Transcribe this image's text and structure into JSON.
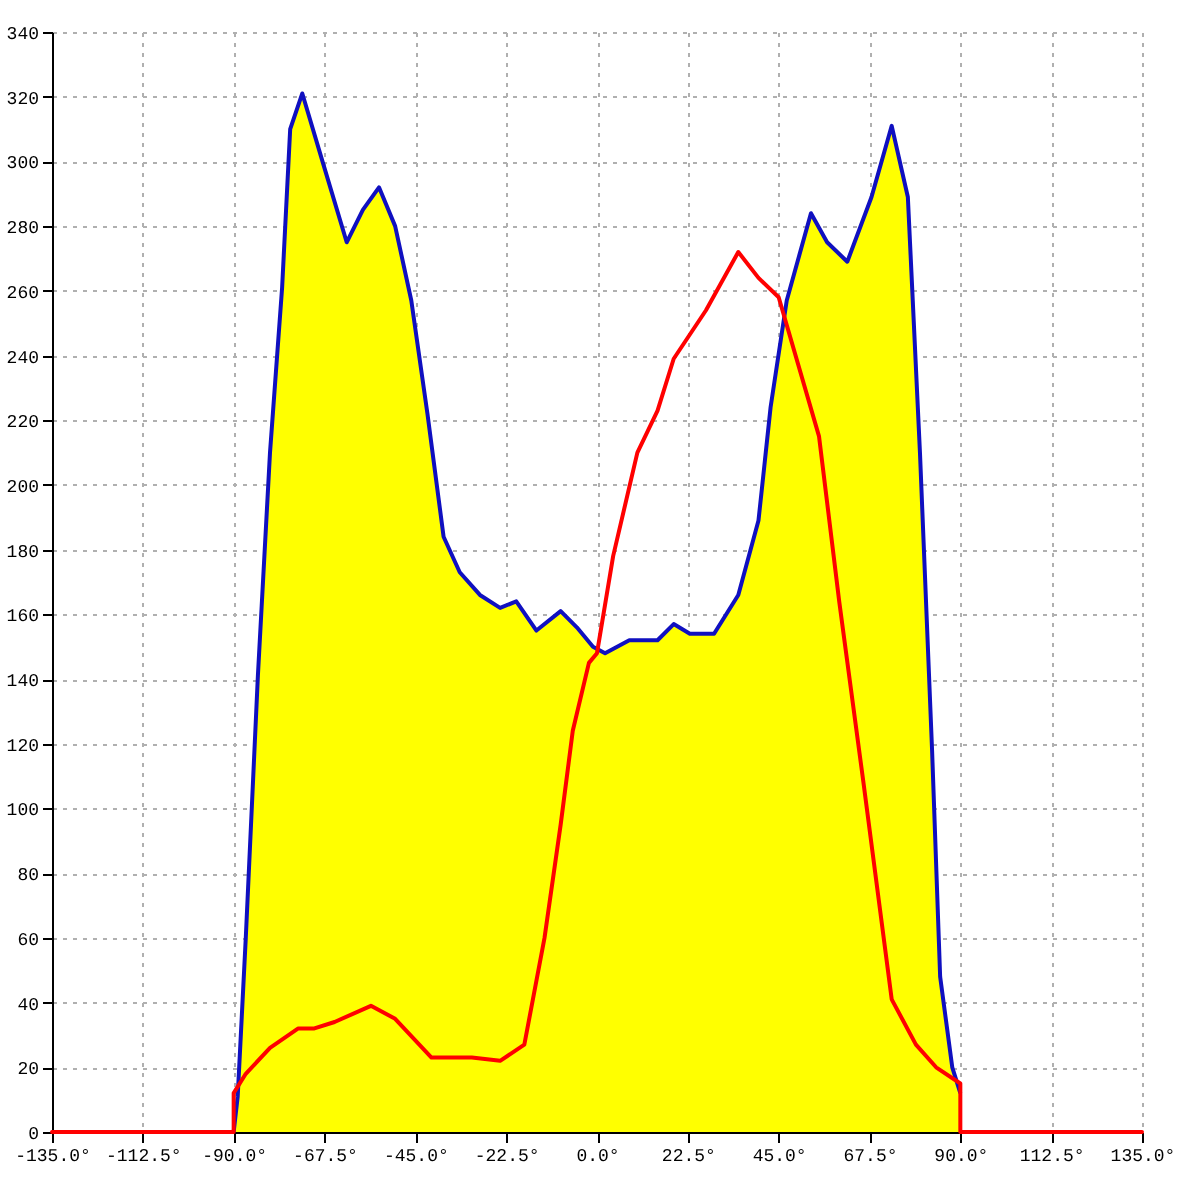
{
  "chart_data": {
    "type": "line",
    "xlim": [
      -135,
      135
    ],
    "xticks": [
      {
        "value": -135,
        "label": "-135.0°"
      },
      {
        "value": -112.5,
        "label": "-112.5°"
      },
      {
        "value": -90,
        "label": "-90.0°"
      },
      {
        "value": -67.5,
        "label": "-67.5°"
      },
      {
        "value": -45,
        "label": "-45.0°"
      },
      {
        "value": -22.5,
        "label": "-22.5°"
      },
      {
        "value": 0,
        "label": "0.0°"
      },
      {
        "value": 22.5,
        "label": "22.5°"
      },
      {
        "value": 45,
        "label": "45.0°"
      },
      {
        "value": 67.5,
        "label": "67.5°"
      },
      {
        "value": 90,
        "label": "90.0°"
      },
      {
        "value": 112.5,
        "label": "112.5°"
      },
      {
        "value": 135,
        "label": "135.0°"
      }
    ],
    "ylim": [
      0,
      340
    ],
    "yticks": [
      0,
      20,
      40,
      60,
      80,
      100,
      120,
      140,
      160,
      180,
      200,
      220,
      240,
      260,
      280,
      300,
      320,
      340
    ],
    "grid": true,
    "series": [
      {
        "type": "area",
        "color": "#ffff00",
        "x": [
          -90,
          -89,
          -87,
          -84,
          -81,
          -78,
          -76,
          -73,
          -68,
          -62,
          -58,
          -54,
          -50,
          -46,
          -42,
          -38,
          -34,
          -29,
          -24,
          -20,
          -15,
          -9,
          -5,
          -1,
          2,
          8,
          15,
          19,
          23,
          29,
          35,
          40,
          43,
          47,
          53,
          57,
          62,
          68,
          73,
          77,
          80,
          83,
          85,
          88,
          90,
          90
        ],
        "values": [
          0,
          11,
          60,
          141,
          210,
          261,
          310,
          321,
          300,
          275,
          285,
          292,
          280,
          257,
          222,
          184,
          173,
          166,
          162,
          164,
          155,
          161,
          156,
          150,
          148,
          152,
          152,
          157,
          154,
          154,
          166,
          189,
          224,
          257,
          284,
          275,
          269,
          289,
          311,
          289,
          210,
          118,
          48,
          20,
          12,
          0
        ]
      },
      {
        "color": "#ff0000",
        "x": [
          -135,
          -90,
          -90,
          -87,
          -81,
          -74,
          -70,
          -65,
          -56,
          -50,
          -41,
          -31,
          -24,
          -18,
          -13,
          -9,
          -6,
          -2,
          0,
          4,
          10,
          15,
          19,
          27,
          35,
          40,
          45,
          55,
          60,
          66,
          73,
          79,
          84,
          90,
          90,
          135
        ],
        "values": [
          0,
          0,
          12,
          18,
          26,
          32,
          32,
          34,
          39,
          35,
          23,
          23,
          22,
          27,
          60,
          95,
          124,
          145,
          148,
          178,
          210,
          223,
          239,
          254,
          272,
          264,
          258,
          215,
          164,
          108,
          41,
          27,
          20,
          15,
          0,
          0
        ]
      }
    ]
  }
}
